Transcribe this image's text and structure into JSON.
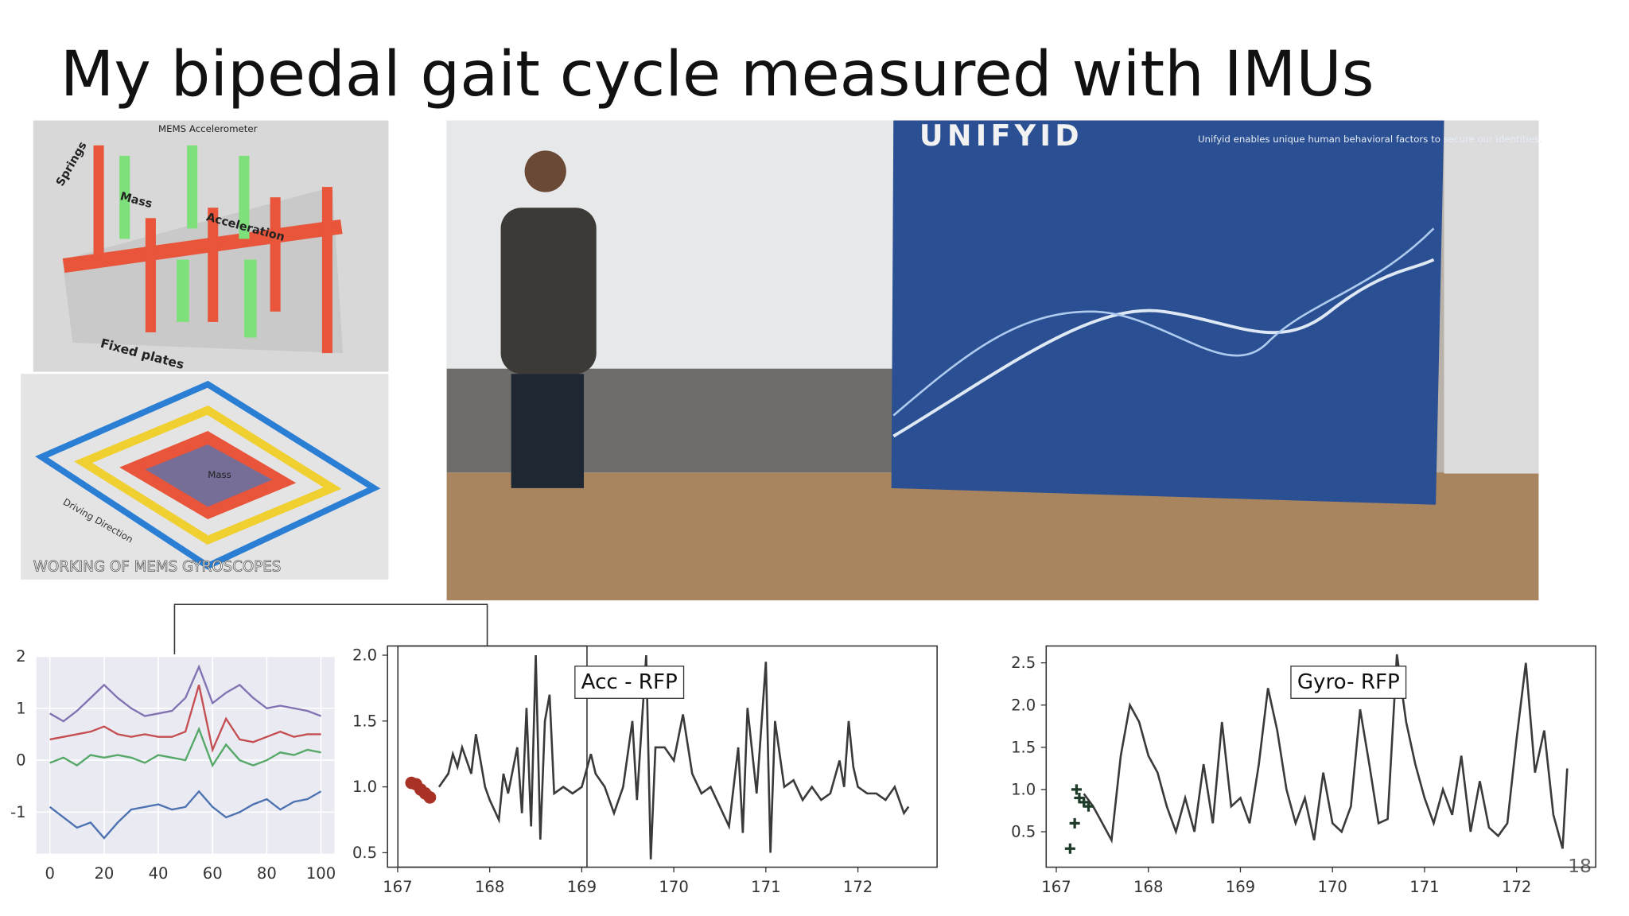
{
  "title": "My bipedal gait cycle measured with IMUs",
  "accelerometer_image": {
    "heading": "MEMS Accelerometer",
    "labels": [
      "Springs",
      "Mass",
      "Acceleration",
      "Fixed plates"
    ]
  },
  "gyroscope_image": {
    "labels": [
      "Mass",
      "Driving Direction"
    ],
    "caption": "WORKING OF MEMS GYROSCOPES"
  },
  "photo": {
    "logo": "UNIFYID",
    "tagline": "Unifyid enables unique human behavioral factors to secure our identities."
  },
  "page_number": "18",
  "chart_data": [
    {
      "type": "line",
      "grid": true,
      "x": [
        0,
        5,
        10,
        15,
        20,
        25,
        30,
        35,
        40,
        45,
        50,
        55,
        60,
        65,
        70,
        75,
        80,
        85,
        90,
        95,
        100
      ],
      "series": [
        {
          "color": "#8172b2",
          "values": [
            0.9,
            0.75,
            0.95,
            1.2,
            1.45,
            1.2,
            1.0,
            0.85,
            0.9,
            0.95,
            1.2,
            1.8,
            1.1,
            1.3,
            1.45,
            1.2,
            1.0,
            1.05,
            1.0,
            0.95,
            0.85
          ]
        },
        {
          "color": "#c44e52",
          "values": [
            0.4,
            0.45,
            0.5,
            0.55,
            0.65,
            0.5,
            0.45,
            0.5,
            0.45,
            0.45,
            0.55,
            1.45,
            0.2,
            0.8,
            0.4,
            0.35,
            0.45,
            0.55,
            0.45,
            0.5,
            0.5
          ]
        },
        {
          "color": "#55a868",
          "values": [
            -0.05,
            0.05,
            -0.1,
            0.1,
            0.05,
            0.1,
            0.05,
            -0.05,
            0.1,
            0.05,
            0.0,
            0.6,
            -0.1,
            0.3,
            0.0,
            -0.1,
            0.0,
            0.15,
            0.1,
            0.2,
            0.15
          ]
        },
        {
          "color": "#4c72b0",
          "values": [
            -0.9,
            -1.1,
            -1.3,
            -1.2,
            -1.5,
            -1.2,
            -0.95,
            -0.9,
            -0.85,
            -0.95,
            -0.9,
            -0.6,
            -0.9,
            -1.1,
            -1.0,
            -0.85,
            -0.75,
            -0.95,
            -0.8,
            -0.75,
            -0.6
          ]
        }
      ],
      "xlim": [
        -5,
        105
      ],
      "ylim": [
        -1.8,
        2.0
      ],
      "xticks": [
        0,
        20,
        40,
        60,
        80,
        100
      ],
      "yticks": [
        -1,
        0,
        1,
        2
      ]
    },
    {
      "type": "line",
      "grid": false,
      "annotation": "Acc - RFP",
      "series": [
        {
          "color": "#3a3a3a",
          "marker": "line",
          "x": [
            167.45,
            167.55,
            167.6,
            167.65,
            167.7,
            167.75,
            167.8,
            167.85,
            167.9,
            167.95,
            168.0,
            168.1,
            168.15,
            168.2,
            168.3,
            168.35,
            168.4,
            168.45,
            168.5,
            168.55,
            168.6,
            168.65,
            168.7,
            168.8,
            168.9,
            169.0,
            169.1,
            169.15,
            169.25,
            169.35,
            169.45,
            169.55,
            169.6,
            169.7,
            169.75,
            169.8,
            169.9,
            170.0,
            170.1,
            170.2,
            170.3,
            170.4,
            170.5,
            170.6,
            170.7,
            170.75,
            170.8,
            170.9,
            171.0,
            171.05,
            171.1,
            171.2,
            171.3,
            171.4,
            171.5,
            171.6,
            171.7,
            171.8,
            171.85,
            171.9,
            171.95,
            172.0,
            172.1,
            172.2,
            172.3,
            172.4,
            172.5,
            172.55
          ],
          "values": [
            1.0,
            1.1,
            1.25,
            1.15,
            1.3,
            1.2,
            1.1,
            1.4,
            1.2,
            1.0,
            0.9,
            0.75,
            1.1,
            0.95,
            1.3,
            0.8,
            1.6,
            0.7,
            2.0,
            0.6,
            1.5,
            1.7,
            0.95,
            1.0,
            0.95,
            1.0,
            1.25,
            1.1,
            1.0,
            0.8,
            1.0,
            1.5,
            0.9,
            2.0,
            0.45,
            1.3,
            1.3,
            1.2,
            1.55,
            1.1,
            0.95,
            1.0,
            0.85,
            0.7,
            1.3,
            0.65,
            1.6,
            0.95,
            1.95,
            0.5,
            1.5,
            1.0,
            1.05,
            0.9,
            1.0,
            0.9,
            0.95,
            1.2,
            1.0,
            1.5,
            1.15,
            1.0,
            0.95,
            0.95,
            0.9,
            1.0,
            0.8,
            0.85
          ]
        },
        {
          "color": "#a93226",
          "marker": "dots",
          "x": [
            167.15,
            167.2,
            167.25,
            167.3,
            167.35
          ],
          "values": [
            1.03,
            1.02,
            0.98,
            0.95,
            0.92
          ]
        }
      ],
      "xlim": [
        166.89,
        172.86
      ],
      "ylim": [
        0.39,
        2.07
      ],
      "xticks": [
        167,
        168,
        169,
        170,
        171,
        172
      ],
      "yticks": [
        {
          "value": 0.5,
          "label": "0.5"
        },
        {
          "value": 1,
          "label": "1.0"
        },
        {
          "value": 1.5,
          "label": "1.5"
        },
        {
          "value": 2,
          "label": "2.0"
        }
      ]
    },
    {
      "type": "line",
      "grid": false,
      "annotation": "Gyro- RFP",
      "series": [
        {
          "color": "#3a3a3a",
          "marker": "line",
          "x": [
            167.3,
            167.4,
            167.5,
            167.6,
            167.7,
            167.8,
            167.9,
            168.0,
            168.1,
            168.2,
            168.3,
            168.4,
            168.5,
            168.6,
            168.7,
            168.8,
            168.9,
            169.0,
            169.1,
            169.2,
            169.3,
            169.4,
            169.5,
            169.6,
            169.7,
            169.8,
            169.9,
            170.0,
            170.1,
            170.2,
            170.3,
            170.4,
            170.5,
            170.6,
            170.7,
            170.8,
            170.9,
            171.0,
            171.1,
            171.2,
            171.3,
            171.4,
            171.5,
            171.6,
            171.7,
            171.8,
            171.9,
            172.0,
            172.1,
            172.2,
            172.3,
            172.4,
            172.5,
            172.55
          ],
          "values": [
            0.95,
            0.8,
            0.6,
            0.4,
            1.4,
            2.0,
            1.8,
            1.4,
            1.2,
            0.8,
            0.5,
            0.9,
            0.5,
            1.3,
            0.6,
            1.8,
            0.8,
            0.9,
            0.6,
            1.3,
            2.2,
            1.7,
            1.0,
            0.6,
            0.9,
            0.4,
            1.2,
            0.6,
            0.5,
            0.8,
            1.95,
            1.3,
            0.6,
            0.65,
            2.6,
            1.8,
            1.3,
            0.9,
            0.6,
            1.0,
            0.7,
            1.4,
            0.5,
            1.1,
            0.55,
            0.45,
            0.6,
            1.6,
            2.5,
            1.2,
            1.7,
            0.7,
            0.3,
            1.25
          ]
        },
        {
          "color": "#1e3a28",
          "marker": "crosses",
          "x": [
            167.15,
            167.2,
            167.22,
            167.25,
            167.3,
            167.35
          ],
          "values": [
            0.3,
            0.6,
            1.0,
            0.9,
            0.85,
            0.8
          ]
        }
      ],
      "xlim": [
        166.89,
        172.86
      ],
      "ylim": [
        0.08,
        2.7
      ],
      "xticks": [
        167,
        168,
        169,
        170,
        171,
        172
      ],
      "yticks": [
        {
          "value": 0.5,
          "label": "0.5"
        },
        {
          "value": 1,
          "label": "1.0"
        },
        {
          "value": 1.5,
          "label": "1.5"
        },
        {
          "value": 2,
          "label": "2.0"
        },
        {
          "value": 2.5,
          "label": "2.5"
        }
      ]
    }
  ]
}
